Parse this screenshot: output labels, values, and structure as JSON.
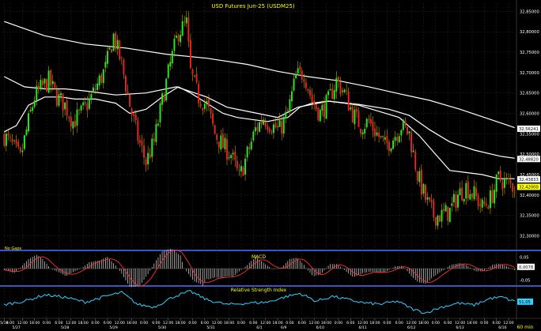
{
  "chart_data": {
    "type": "candlestick",
    "title": "USD Futures Jun-25 (USDM25)",
    "no_gaps_label": "No Gaps",
    "grid": true,
    "colors": {
      "up": "#22ee22",
      "down": "#ee2222",
      "wick": "#c8a000",
      "ma": "#ffffff",
      "macd_line": "#ff3030",
      "rsi_line": "#33d0ff",
      "background": "#000000",
      "separator": "#5070ff"
    },
    "y_axis": {
      "ylim": [
        32.27,
        32.87
      ],
      "ticks": [
        "32,30000",
        "32,35000",
        "32,40000",
        "32,45000",
        "32,50000",
        "32,55000",
        "32,60000",
        "32,65000",
        "32,70000",
        "32,75000",
        "32,80000",
        "32,85000"
      ],
      "tick_values": [
        32.3,
        32.35,
        32.4,
        32.45,
        32.5,
        32.55,
        32.6,
        32.65,
        32.7,
        32.75,
        32.8,
        32.85
      ],
      "price_tags": [
        {
          "label": "32,56241",
          "value": 32.5624,
          "bg": "#ffffff"
        },
        {
          "label": "32,48820",
          "value": 32.4882,
          "bg": "#ffffff"
        },
        {
          "label": "32,43833",
          "value": 32.4383,
          "bg": "#ffffff"
        },
        {
          "label": "32,42000",
          "value": 32.42,
          "bg": "#ffff00"
        }
      ]
    },
    "x_axis": {
      "unit_label": "60 min",
      "ticks": [
        {
          "label": "5/18",
          "i": 0
        },
        {
          "label": "6:00",
          "i": 3
        },
        {
          "label": "12:00",
          "i": 9
        },
        {
          "label": "18:00",
          "i": 15
        },
        {
          "label": "0:00",
          "i": 21
        },
        {
          "label": "6:00",
          "i": 27
        },
        {
          "label": "12:00",
          "i": 33
        },
        {
          "label": "18:00",
          "i": 39
        },
        {
          "label": "0:00",
          "i": 45
        },
        {
          "label": "6:00",
          "i": 51
        },
        {
          "label": "12:00",
          "i": 57
        },
        {
          "label": "18:00",
          "i": 63
        },
        {
          "label": "0:00",
          "i": 69
        },
        {
          "label": "6:00",
          "i": 75
        },
        {
          "label": "12:00",
          "i": 81
        },
        {
          "label": "18:00",
          "i": 87
        },
        {
          "label": "0:00",
          "i": 93
        },
        {
          "label": "6:00",
          "i": 99
        },
        {
          "label": "12:00",
          "i": 105
        },
        {
          "label": "18:00",
          "i": 111
        },
        {
          "label": "0:00",
          "i": 117
        },
        {
          "label": "6:00",
          "i": 123
        },
        {
          "label": "12:00",
          "i": 129
        },
        {
          "label": "18:00",
          "i": 135
        },
        {
          "label": "0:00",
          "i": 141
        },
        {
          "label": "6:00",
          "i": 147
        },
        {
          "label": "12:00",
          "i": 153
        },
        {
          "label": "18:00",
          "i": 159
        },
        {
          "label": "0:00",
          "i": 165
        },
        {
          "label": "6:00",
          "i": 171
        },
        {
          "label": "12:00",
          "i": 177
        },
        {
          "label": "18:00",
          "i": 183
        },
        {
          "label": "0:00",
          "i": 189
        },
        {
          "label": "6:00",
          "i": 195
        },
        {
          "label": "12:00",
          "i": 201
        },
        {
          "label": "18:00",
          "i": 207
        },
        {
          "label": "0:00",
          "i": 213
        },
        {
          "label": "6:00",
          "i": 219
        },
        {
          "label": "12:00",
          "i": 225
        },
        {
          "label": "18:00",
          "i": 231
        },
        {
          "label": "0:00",
          "i": 237
        },
        {
          "label": "6:00",
          "i": 243
        },
        {
          "label": "12:00",
          "i": 249
        }
      ],
      "date_labels": [
        {
          "label": "5/27",
          "i": 6
        },
        {
          "label": "5/28",
          "i": 30
        },
        {
          "label": "5/29",
          "i": 54
        },
        {
          "label": "5/30",
          "i": 78
        },
        {
          "label": "5/31",
          "i": 102
        },
        {
          "label": "6/1",
          "i": 126
        },
        {
          "label": "6/9",
          "i": 138
        },
        {
          "label": "6/10",
          "i": 156
        },
        {
          "label": "6/11",
          "i": 177
        },
        {
          "label": "6/12",
          "i": 201
        },
        {
          "label": "6/13",
          "i": 225
        },
        {
          "label": "6/16",
          "i": 246
        }
      ]
    },
    "ma_series": [
      {
        "name": "",
        "points": [
          [
            0,
            32.825
          ],
          [
            20,
            32.79
          ],
          [
            40,
            32.77
          ],
          [
            60,
            32.76
          ],
          [
            80,
            32.745
          ],
          [
            100,
            32.735
          ],
          [
            120,
            32.72
          ],
          [
            135,
            32.703
          ],
          [
            150,
            32.69
          ],
          [
            165,
            32.68
          ],
          [
            180,
            32.665
          ],
          [
            195,
            32.648
          ],
          [
            210,
            32.632
          ],
          [
            225,
            32.61
          ],
          [
            240,
            32.585
          ],
          [
            252,
            32.565
          ]
        ]
      },
      {
        "name": "",
        "points": [
          [
            0,
            32.69
          ],
          [
            10,
            32.665
          ],
          [
            20,
            32.66
          ],
          [
            30,
            32.66
          ],
          [
            40,
            32.655
          ],
          [
            55,
            32.645
          ],
          [
            70,
            32.65
          ],
          [
            85,
            32.665
          ],
          [
            100,
            32.64
          ],
          [
            110,
            32.615
          ],
          [
            120,
            32.605
          ],
          [
            135,
            32.59
          ],
          [
            145,
            32.615
          ],
          [
            160,
            32.63
          ],
          [
            175,
            32.622
          ],
          [
            190,
            32.61
          ],
          [
            200,
            32.595
          ],
          [
            210,
            32.56
          ],
          [
            220,
            32.53
          ],
          [
            232,
            32.51
          ],
          [
            245,
            32.495
          ],
          [
            252,
            32.49
          ]
        ]
      },
      {
        "name": "",
        "points": [
          [
            0,
            32.555
          ],
          [
            6,
            32.57
          ],
          [
            12,
            32.62
          ],
          [
            20,
            32.64
          ],
          [
            28,
            32.64
          ],
          [
            35,
            32.635
          ],
          [
            45,
            32.635
          ],
          [
            55,
            32.625
          ],
          [
            62,
            32.6
          ],
          [
            70,
            32.61
          ],
          [
            78,
            32.64
          ],
          [
            86,
            32.665
          ],
          [
            92,
            32.65
          ],
          [
            100,
            32.625
          ],
          [
            108,
            32.6
          ],
          [
            115,
            32.59
          ],
          [
            122,
            32.585
          ],
          [
            130,
            32.58
          ],
          [
            140,
            32.59
          ],
          [
            146,
            32.615
          ],
          [
            152,
            32.625
          ],
          [
            160,
            32.63
          ],
          [
            168,
            32.625
          ],
          [
            175,
            32.62
          ],
          [
            185,
            32.605
          ],
          [
            195,
            32.59
          ],
          [
            205,
            32.545
          ],
          [
            212,
            32.505
          ],
          [
            220,
            32.46
          ],
          [
            228,
            32.455
          ],
          [
            236,
            32.45
          ],
          [
            244,
            32.44
          ],
          [
            252,
            32.44
          ]
        ]
      }
    ],
    "candles_anchors": [
      [
        0,
        32.545
      ],
      [
        4,
        32.52
      ],
      [
        8,
        32.49
      ],
      [
        12,
        32.58
      ],
      [
        15,
        32.64
      ],
      [
        18,
        32.66
      ],
      [
        22,
        32.68
      ],
      [
        26,
        32.64
      ],
      [
        30,
        32.62
      ],
      [
        34,
        32.58
      ],
      [
        38,
        32.6
      ],
      [
        42,
        32.63
      ],
      [
        46,
        32.67
      ],
      [
        50,
        32.71
      ],
      [
        54,
        32.79
      ],
      [
        58,
        32.72
      ],
      [
        62,
        32.62
      ],
      [
        66,
        32.54
      ],
      [
        70,
        32.48
      ],
      [
        74,
        32.53
      ],
      [
        78,
        32.63
      ],
      [
        82,
        32.72
      ],
      [
        86,
        32.8
      ],
      [
        90,
        32.82
      ],
      [
        92,
        32.7
      ],
      [
        96,
        32.64
      ],
      [
        100,
        32.62
      ],
      [
        104,
        32.55
      ],
      [
        108,
        32.52
      ],
      [
        112,
        32.5
      ],
      [
        116,
        32.44
      ],
      [
        120,
        32.5
      ],
      [
        124,
        32.56
      ],
      [
        128,
        32.59
      ],
      [
        132,
        32.57
      ],
      [
        136,
        32.56
      ],
      [
        140,
        32.6
      ],
      [
        144,
        32.69
      ],
      [
        148,
        32.7
      ],
      [
        152,
        32.63
      ],
      [
        156,
        32.6
      ],
      [
        160,
        32.63
      ],
      [
        164,
        32.68
      ],
      [
        168,
        32.65
      ],
      [
        172,
        32.6
      ],
      [
        176,
        32.57
      ],
      [
        180,
        32.58
      ],
      [
        184,
        32.55
      ],
      [
        188,
        32.52
      ],
      [
        192,
        32.54
      ],
      [
        196,
        32.57
      ],
      [
        200,
        32.55
      ],
      [
        204,
        32.45
      ],
      [
        208,
        32.39
      ],
      [
        212,
        32.35
      ],
      [
        216,
        32.35
      ],
      [
        220,
        32.36
      ],
      [
        224,
        32.4
      ],
      [
        228,
        32.42
      ],
      [
        232,
        32.4
      ],
      [
        236,
        32.37
      ],
      [
        240,
        32.39
      ],
      [
        244,
        32.44
      ],
      [
        248,
        32.43
      ],
      [
        252,
        32.42
      ]
    ],
    "macd": {
      "title": "MACD",
      "ticks": [
        "0,05",
        "0,00",
        "-0,05"
      ],
      "tick_values": [
        0.05,
        0.0,
        -0.05
      ],
      "ylim": [
        -0.07,
        0.07
      ],
      "current_label": "0,0078",
      "current_value": 0.0078
    },
    "rsi": {
      "title": "Relative Strength Index",
      "ylim": [
        20,
        80
      ],
      "current_label": "51,05",
      "current_value": 51.05,
      "anchors": [
        [
          0,
          45
        ],
        [
          10,
          52
        ],
        [
          20,
          65
        ],
        [
          30,
          60
        ],
        [
          40,
          50
        ],
        [
          50,
          62
        ],
        [
          58,
          70
        ],
        [
          66,
          45
        ],
        [
          74,
          40
        ],
        [
          84,
          62
        ],
        [
          92,
          72
        ],
        [
          100,
          55
        ],
        [
          110,
          45
        ],
        [
          120,
          48
        ],
        [
          130,
          50
        ],
        [
          138,
          60
        ],
        [
          146,
          68
        ],
        [
          154,
          52
        ],
        [
          162,
          62
        ],
        [
          170,
          55
        ],
        [
          178,
          48
        ],
        [
          186,
          46
        ],
        [
          194,
          52
        ],
        [
          202,
          35
        ],
        [
          208,
          28
        ],
        [
          216,
          40
        ],
        [
          224,
          48
        ],
        [
          232,
          44
        ],
        [
          240,
          58
        ],
        [
          246,
          60
        ],
        [
          252,
          51
        ]
      ]
    }
  }
}
